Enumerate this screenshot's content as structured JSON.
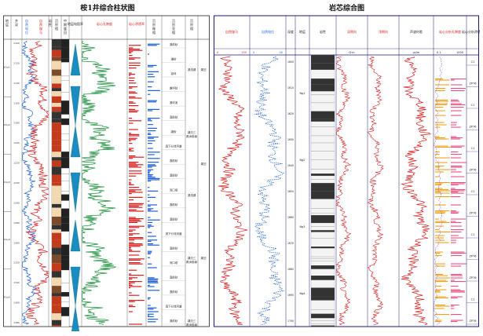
{
  "left": {
    "title": "桉1井综合柱状图",
    "headers": [
      "地层",
      "井深(m)",
      "自然电位(SP)",
      "自然伽马(GR)",
      "岩性",
      "沉积相",
      "中期旋回",
      "地层电阻率",
      "岩心孔隙度",
      "岩心渗透率",
      "沉积微相",
      "沉积亚相",
      "沉积相"
    ],
    "sp_label": "自然电位",
    "gr_label": "自然伽马",
    "res_label": "地层电阻率",
    "por_label": "岩心孔隙度",
    "perm_label": "岩心渗透率",
    "por_unit": "%",
    "perm_unit": "mD",
    "micro_facies": [
      "滨前砂",
      "滩砂",
      "泥坪",
      "滩坪砂",
      "滨坪泥",
      "滨前砂",
      "滩砂",
      "滨下分流河道",
      "滨前砂",
      "滨前砂",
      "河口坝",
      "滨前砂",
      "滨前砂",
      "滨下分流河道",
      "滨前砂",
      "河口坝",
      "滨前砂",
      "滨前砂",
      "滨下分流河道",
      "滨前砂"
    ],
    "sub_facies": [
      "滨浅湖",
      "湖泊三角洲前缘",
      "滨浅湖",
      "湖泊三角洲前缘",
      "湖泊三角洲前缘"
    ],
    "facies": [
      "湖泊",
      "湖泊",
      "湖泊"
    ],
    "depths": [
      "1100",
      "1120",
      "1140",
      "1160",
      "1180",
      "1200",
      "1220",
      "1240",
      "1260",
      "1280",
      "1300",
      "1320",
      "1340",
      "1360",
      "1380"
    ],
    "formations": [
      "K1y1",
      "K1y2",
      "K1y3",
      "K1y4",
      "K1y5"
    ]
  },
  "right": {
    "title": "岩芯综合图",
    "headers": [
      "自然伽马",
      "自然电位",
      "深度",
      "地层",
      "岩性",
      "深侧向",
      "浅侧向",
      "声波时差",
      "岩心分析孔隙度",
      "岩心分析渗透率",
      "结论"
    ],
    "gr_range": [
      "0",
      "150"
    ],
    "sp_range": [
      "0",
      "40"
    ],
    "res_unit": "Ω·m",
    "ac_unit": "μs/m",
    "por_label": "岩心分析孔隙度",
    "perm_label": "岩心分析渗透率",
    "perm_scale": [
      "0.1",
      "1000"
    ],
    "depths": [
      "1600",
      "1610",
      "1620",
      "1630",
      "1640",
      "1650",
      "1660",
      "1670",
      "1680",
      "1690",
      "1700"
    ],
    "formations": [
      "Ng1",
      "Ng2",
      "Ng3",
      "Ng4"
    ],
    "conclusions": [
      "C1",
      "ZP76",
      "C1",
      "ZP76",
      "C1",
      "ZP76",
      "C1",
      "ZP76",
      "C1",
      "ZP76",
      "ZP76",
      "C1",
      "ZP76"
    ]
  },
  "colors": {
    "red": "#d42020",
    "blue": "#1f5fd6",
    "green": "#1a8f3a",
    "teal": "#1a8cc0",
    "orange": "#f0a020",
    "pink": "#e85080",
    "purple": "#8a3fb0",
    "border": "#1a1a7a"
  }
}
